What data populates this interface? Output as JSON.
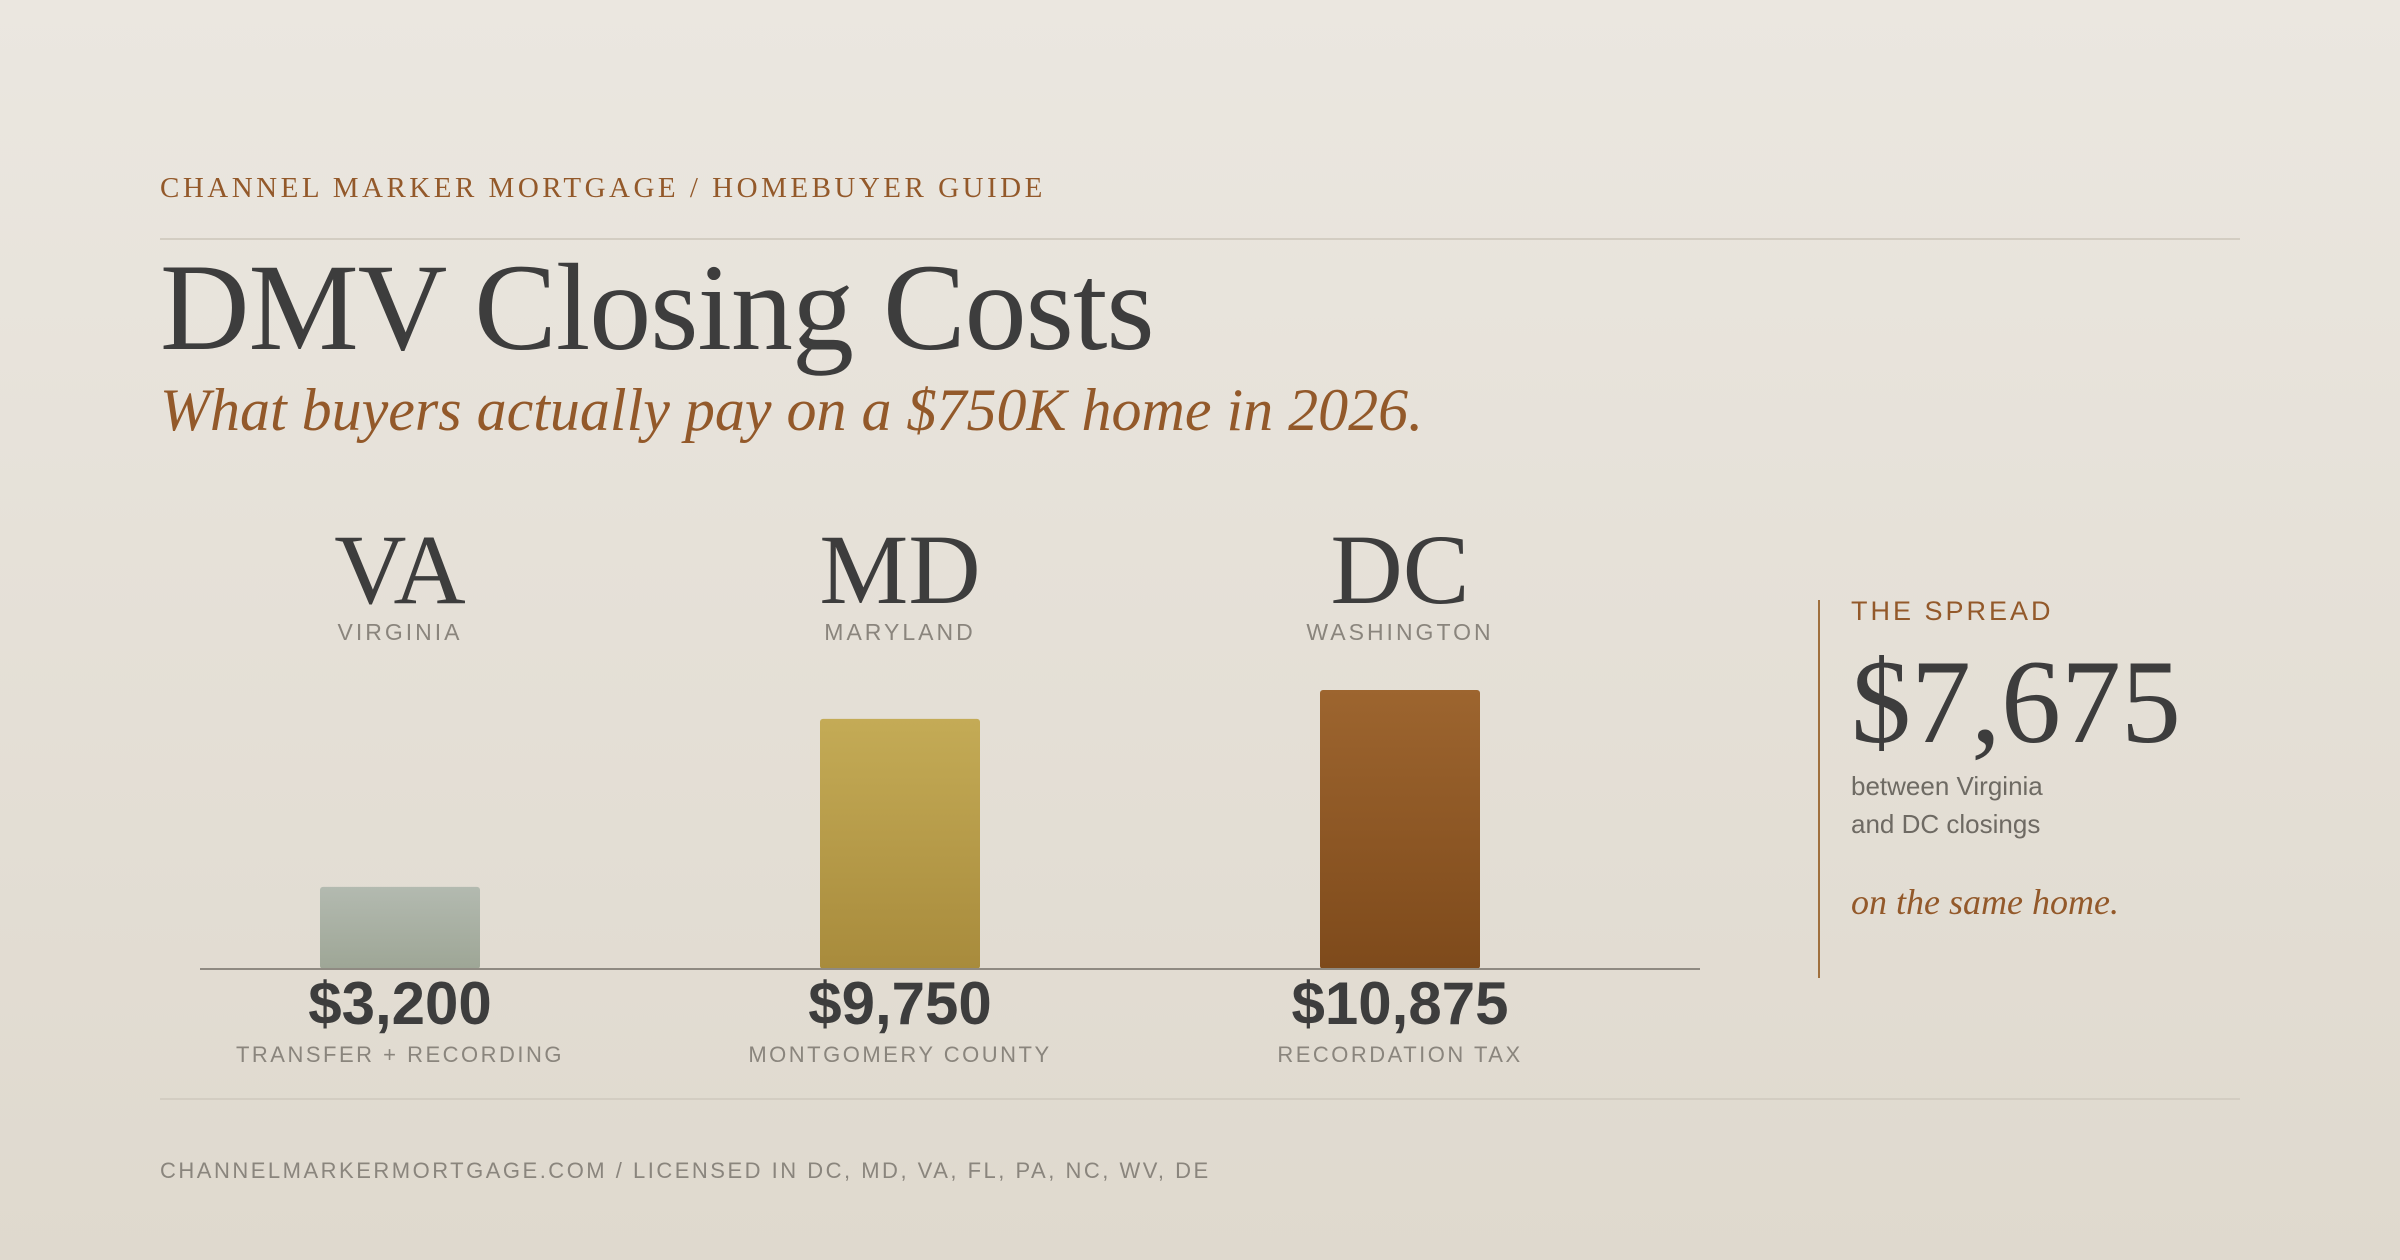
{
  "header": {
    "eyebrow": "CHANNEL MARKER MORTGAGE / HOMEBUYER GUIDE",
    "title": "DMV Closing Costs",
    "subtitle": "What buyers actually pay on a $750K home in 2026."
  },
  "chart_data": {
    "type": "bar",
    "title": "DMV Closing Costs",
    "subtitle": "What buyers actually pay on a $750K home in 2026.",
    "categories": [
      "VA",
      "MD",
      "DC"
    ],
    "category_names": [
      "VIRGINIA",
      "MARYLAND",
      "WASHINGTON"
    ],
    "values": [
      3200,
      9750,
      10875
    ],
    "value_labels": [
      "$3,200",
      "$9,750",
      "$10,875"
    ],
    "notes": [
      "TRANSFER + RECORDING",
      "MONTGOMERY COUNTY",
      "RECORDATION TAX"
    ],
    "colors": [
      [
        "#b3bab0",
        "#9ea696"
      ],
      [
        "#c4ab56",
        "#a88b3c"
      ],
      [
        "#9d652f",
        "#7e4a1b"
      ]
    ],
    "ylim": [
      0,
      10875
    ],
    "grid": false,
    "legend": "none"
  },
  "spread": {
    "label": "THE SPREAD",
    "value": "$7,675",
    "description": "between Virginia and DC closings",
    "tagline": "on the same home."
  },
  "footer": {
    "text": "CHANNELMARKERMORTGAGE.COM / LICENSED IN DC, MD, VA, FL, PA, NC, WV, DE"
  }
}
